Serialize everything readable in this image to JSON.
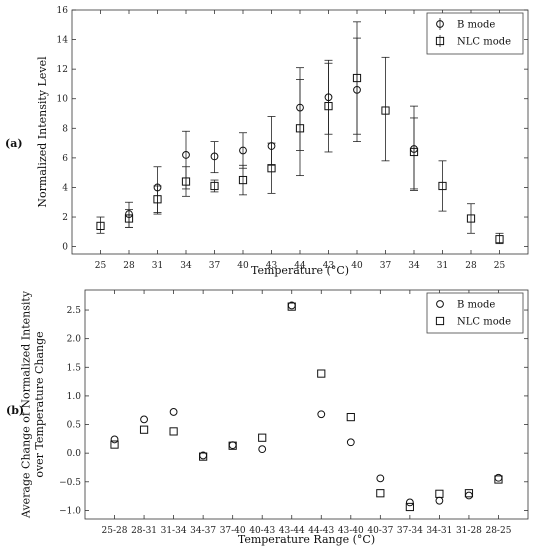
{
  "chart_data": [
    {
      "panel_label": "(a)",
      "type": "scatter",
      "error_bars": true,
      "xlabel": "Temperature (°C)",
      "ylabel": "Normalized Intensity Level",
      "categories": [
        "25",
        "28",
        "31",
        "34",
        "37",
        "40",
        "43",
        "44",
        "43",
        "40",
        "37",
        "34",
        "31",
        "28",
        "25"
      ],
      "ylim": [
        -0.5,
        16
      ],
      "yticks": [
        0,
        2,
        4,
        6,
        8,
        10,
        12,
        14,
        16
      ],
      "legend": "top-right",
      "series": [
        {
          "name": "B mode",
          "marker": "circle",
          "values": [
            null,
            2.2,
            4.0,
            6.2,
            6.1,
            6.5,
            6.8,
            9.4,
            10.1,
            10.6,
            null,
            6.6,
            null,
            null,
            null
          ],
          "err_low": [
            null,
            1.3,
            2.2,
            3.9,
            5.0,
            5.3,
            5.5,
            6.5,
            7.6,
            7.1,
            null,
            3.8,
            null,
            null,
            null
          ],
          "err_high": [
            null,
            3.0,
            5.4,
            7.8,
            7.1,
            7.7,
            8.8,
            12.1,
            12.6,
            14.1,
            null,
            9.5,
            null,
            null,
            null
          ]
        },
        {
          "name": "NLC mode",
          "marker": "square",
          "values": [
            1.4,
            1.9,
            3.2,
            4.4,
            4.1,
            4.5,
            5.3,
            8.0,
            9.5,
            11.4,
            9.2,
            6.4,
            4.1,
            1.9,
            0.5
          ],
          "err_low": [
            0.9,
            1.3,
            2.3,
            3.4,
            3.7,
            3.5,
            3.6,
            4.8,
            6.4,
            7.6,
            5.8,
            3.9,
            2.4,
            0.9,
            0.2
          ],
          "err_high": [
            2.0,
            2.5,
            4.1,
            5.4,
            4.5,
            5.5,
            7.0,
            11.3,
            12.4,
            15.2,
            12.8,
            8.7,
            5.8,
            2.9,
            0.9
          ]
        }
      ]
    },
    {
      "panel_label": "(b)",
      "type": "scatter",
      "xlabel": "Temperature Range (°C)",
      "ylabel": "Average Change of Normalized Intensity over Temperature Change",
      "ylabel_lines": [
        "Average Change of Normalized Intensity",
        "over Temperature Change"
      ],
      "categories": [
        "25-28",
        "28-31",
        "31-34",
        "34-37",
        "37-40",
        "40-43",
        "43-44",
        "44-43",
        "43-40",
        "40-37",
        "37-34",
        "34-31",
        "31-28",
        "28-25"
      ],
      "ylim": [
        -1.15,
        2.85
      ],
      "yticks": [
        -1.0,
        -0.5,
        0.0,
        0.5,
        1.0,
        1.5,
        2.0,
        2.5
      ],
      "ytick_labels": [
        "−1.0",
        "−0.5",
        "0.0",
        "0.5",
        "1.0",
        "1.5",
        "2.0",
        "2.5"
      ],
      "legend": "top-right",
      "series": [
        {
          "name": "B mode",
          "marker": "circle",
          "values": [
            0.24,
            0.59,
            0.72,
            -0.04,
            0.14,
            0.07,
            2.58,
            0.68,
            0.19,
            -0.44,
            -0.86,
            -0.83,
            -0.74,
            -0.43
          ]
        },
        {
          "name": "NLC mode",
          "marker": "square",
          "values": [
            0.15,
            0.41,
            0.38,
            -0.06,
            0.13,
            0.27,
            2.56,
            1.39,
            0.63,
            -0.7,
            -0.94,
            -0.71,
            -0.7,
            -0.46
          ]
        }
      ]
    }
  ]
}
